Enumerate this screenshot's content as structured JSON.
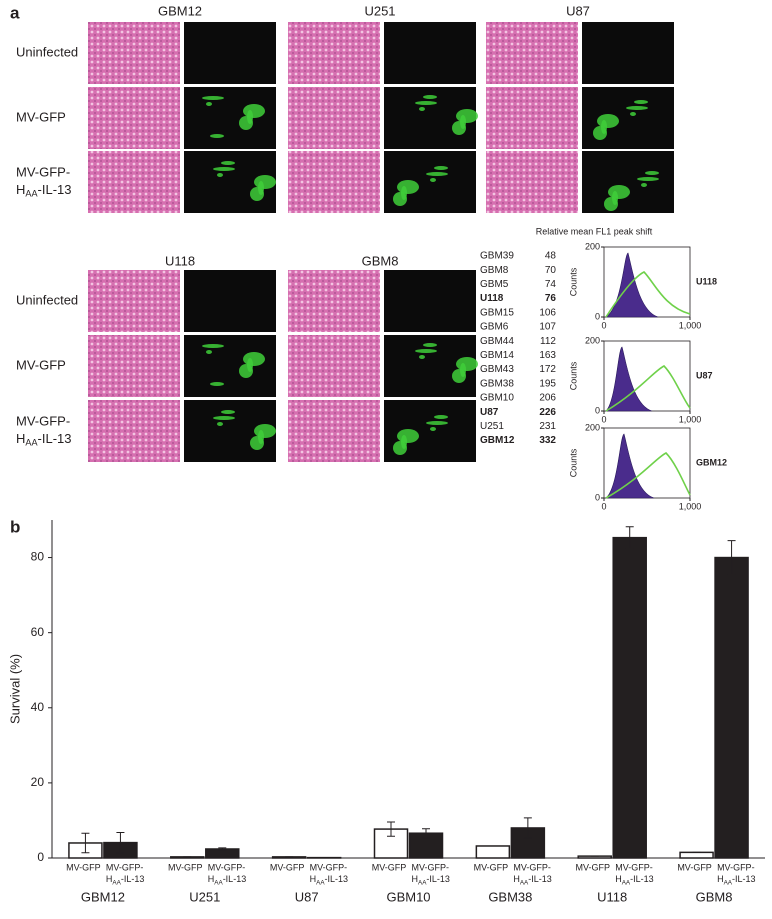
{
  "panel_a": {
    "label": "a",
    "row_labels": {
      "uninfected": "Uninfected",
      "mv_gfp": "MV-GFP",
      "line1": "MV-GFP-",
      "h": "H",
      "sub": "AA",
      "tail": "-IL-13"
    },
    "top_cell_lines": [
      "GBM12",
      "U251",
      "U87"
    ],
    "bottom_cell_lines": [
      "U118",
      "GBM8"
    ],
    "table": {
      "title": "Relative mean FL1 peak shift",
      "rows": [
        [
          "GBM39",
          48
        ],
        [
          "GBM8",
          70
        ],
        [
          "GBM5",
          74
        ],
        [
          "U118",
          76
        ],
        [
          "GBM15",
          106
        ],
        [
          "GBM6",
          107
        ],
        [
          "GBM44",
          112
        ],
        [
          "GBM14",
          163
        ],
        [
          "GBM43",
          172
        ],
        [
          "GBM38",
          195
        ],
        [
          "GBM10",
          206
        ],
        [
          "U87",
          226
        ],
        [
          "U251",
          231
        ],
        [
          "GBM12",
          332
        ]
      ],
      "bold": [
        "U118",
        "U87",
        "GBM12"
      ]
    },
    "histograms": [
      {
        "name": "U118",
        "ylabel": "Counts",
        "ylim": [
          0,
          200
        ],
        "yticks": [
          0,
          200
        ],
        "xlim": [
          0,
          1000
        ],
        "xticks": [
          0,
          {
            "value": 1000,
            "label": "1,000"
          }
        ]
      },
      {
        "name": "U87",
        "ylabel": "Counts",
        "ylim": [
          0,
          200
        ],
        "yticks": [
          0,
          200
        ],
        "xlim": [
          0,
          1000
        ],
        "xticks": [
          0,
          {
            "value": 1000,
            "label": "1,000"
          }
        ]
      },
      {
        "name": "GBM12",
        "ylabel": "Counts",
        "ylim": [
          0,
          200
        ],
        "yticks": [
          0,
          200
        ],
        "xlim": [
          0,
          1000
        ],
        "xticks": [
          0,
          {
            "value": 1000,
            "label": "1,000"
          }
        ]
      }
    ]
  },
  "chart_data": {
    "type": "bar",
    "panel_label": "b",
    "ylabel": "Survival (%)",
    "categories": [
      "GBM12",
      "U251",
      "U87",
      "GBM10",
      "GBM38",
      "U118",
      "GBM8"
    ],
    "series": [
      {
        "name": "MV-GFP",
        "color": "#ffffff",
        "values": [
          4.0,
          0.3,
          0.3,
          7.7,
          3.2,
          0.5,
          1.5
        ],
        "errors": [
          2.6,
          0,
          0,
          1.9,
          0,
          0,
          0
        ]
      },
      {
        "name": "MV-GFP-",
        "name_h": "H",
        "name_sub": "AA",
        "name_end": "-IL-13",
        "color": "#231f20",
        "values": [
          4.1,
          2.4,
          0.1,
          6.6,
          8.0,
          85.3,
          80.0
        ],
        "errors": [
          2.7,
          0.3,
          0,
          1.2,
          2.7,
          2.9,
          4.5
        ]
      }
    ],
    "ylim": [
      0,
      90
    ],
    "yticks": [
      0,
      20,
      40,
      60,
      80
    ]
  }
}
